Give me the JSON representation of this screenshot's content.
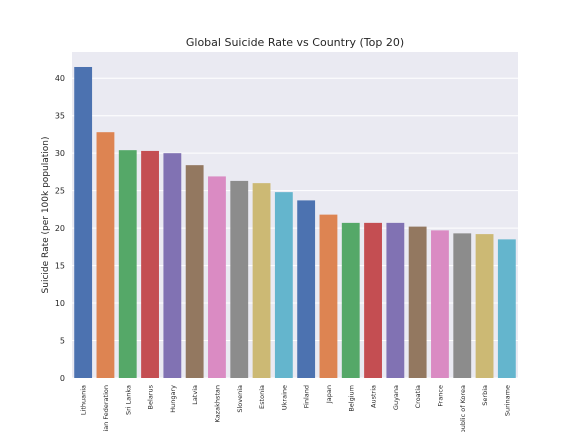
{
  "chart_data": {
    "type": "bar",
    "title": "Global Suicide Rate vs Country (Top 20)",
    "xlabel": "",
    "ylabel": "Suicide Rate (per 100k population)",
    "ylim": [
      0,
      43.5
    ],
    "yticks": [
      0,
      5,
      10,
      15,
      20,
      25,
      30,
      35,
      40
    ],
    "grid": true,
    "legend": "none",
    "background": "#eaeaf2",
    "categories": [
      "Lithuania",
      "Russian Federation",
      "Sri Lanka",
      "Belarus",
      "Hungary",
      "Latvia",
      "Kazakhstan",
      "Slovenia",
      "Estonia",
      "Ukraine",
      "Finland",
      "Japan",
      "Belgium",
      "Austria",
      "Guyana",
      "Croatia",
      "France",
      "Republic of Korea",
      "Serbia",
      "Suriname"
    ],
    "values": [
      41.5,
      32.8,
      30.4,
      30.3,
      30.0,
      28.4,
      26.9,
      26.3,
      26.0,
      24.8,
      23.7,
      21.8,
      20.7,
      20.7,
      20.7,
      20.2,
      19.7,
      19.3,
      19.2,
      18.5
    ],
    "colors": [
      "#4c72b0",
      "#dd8452",
      "#55a868",
      "#c44e52",
      "#8172b3",
      "#937860",
      "#da8bc3",
      "#8c8c8c",
      "#ccb974",
      "#64b5cd"
    ]
  }
}
